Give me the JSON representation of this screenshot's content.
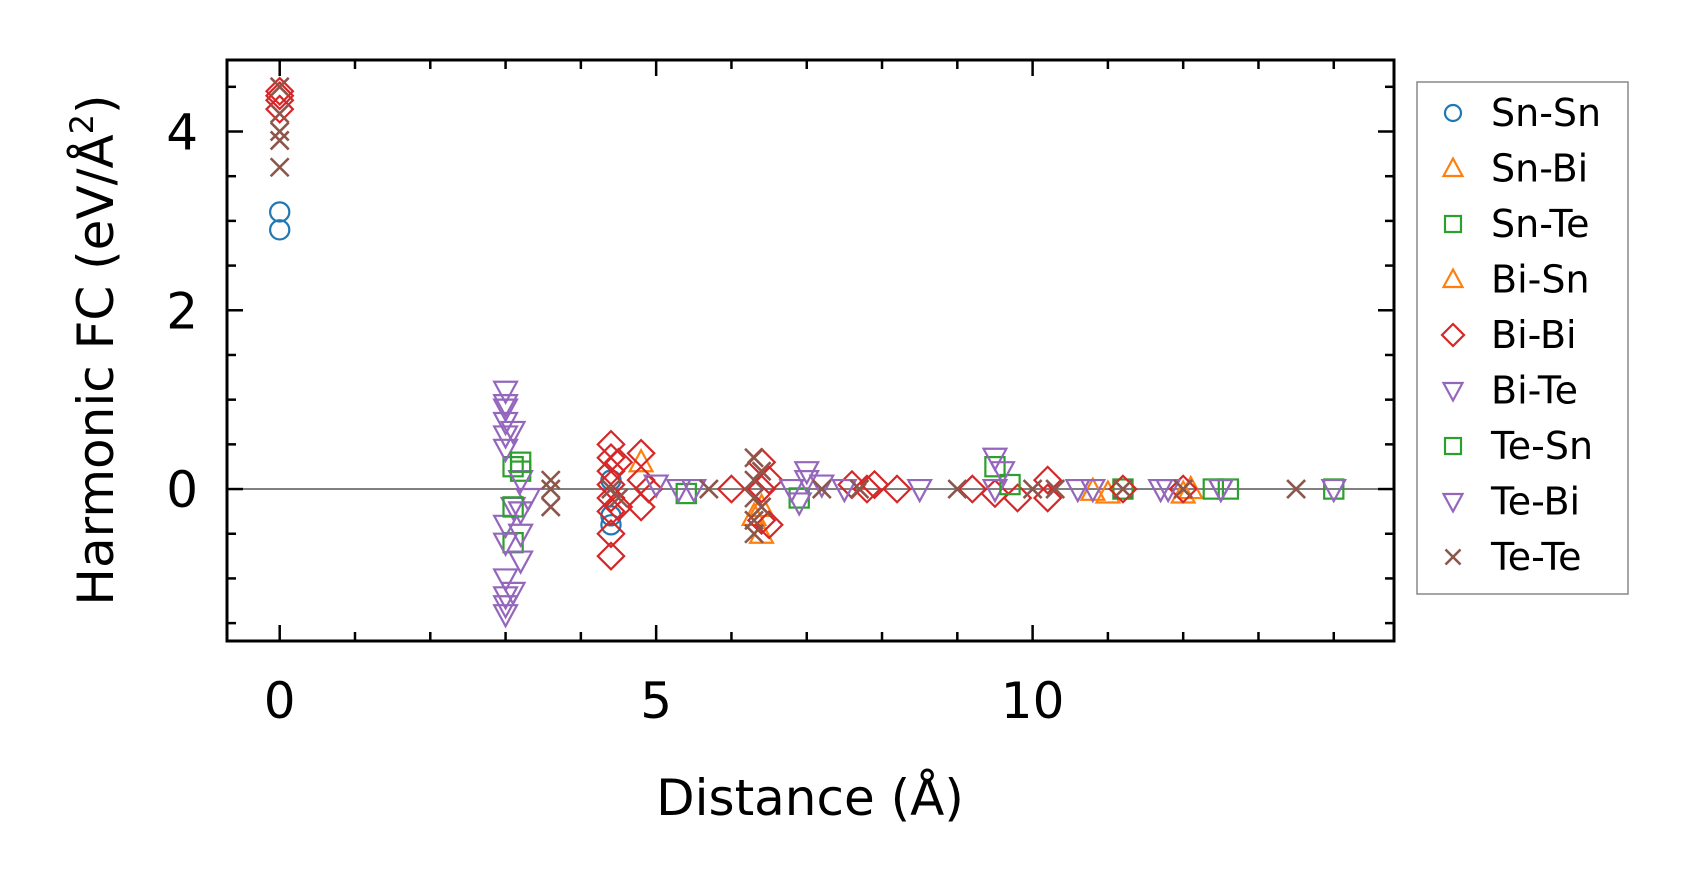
{
  "chart_data": {
    "type": "scatter",
    "title": "",
    "xlabel": "Distance (Å)",
    "ylabel_main": "Harmonic FC (eV/Å",
    "ylabel_sup": "2",
    "ylabel_tail": ")",
    "xlim": [
      -0.7,
      14.8
    ],
    "ylim": [
      -1.7,
      4.8
    ],
    "xticks": [
      0,
      5,
      10
    ],
    "xtick_labels": [
      "0",
      "5",
      "10"
    ],
    "yticks": [
      0,
      2,
      4
    ],
    "ytick_labels": [
      "0",
      "2",
      "4"
    ],
    "minor_step_x": 1,
    "minor_step_y": 0.5,
    "zero_line": true,
    "legend_position": "right",
    "series": [
      {
        "name": "Sn-Sn",
        "marker": "circle",
        "color": "#1f77b4",
        "points": [
          [
            0,
            3.1
          ],
          [
            0,
            2.9
          ],
          [
            4.4,
            -0.3
          ],
          [
            4.4,
            -0.4
          ],
          [
            4.4,
            0.1
          ]
        ]
      },
      {
        "name": "Sn-Bi",
        "marker": "triangle-up",
        "color": "#ff7f0e",
        "points": [
          [
            6.4,
            -0.5
          ],
          [
            6.4,
            -0.2
          ],
          [
            11.0,
            -0.05
          ],
          [
            12.0,
            -0.05
          ],
          [
            4.8,
            0.3
          ]
        ]
      },
      {
        "name": "Sn-Te",
        "marker": "square",
        "color": "#2ca02c",
        "points": [
          [
            3.1,
            0.25
          ],
          [
            3.1,
            -0.6
          ],
          [
            3.2,
            0.2
          ],
          [
            5.4,
            -0.05
          ],
          [
            6.9,
            -0.1
          ],
          [
            9.5,
            0.25
          ],
          [
            12.6,
            0.0
          ],
          [
            14.0,
            0.0
          ],
          [
            11.2,
            0.0
          ]
        ]
      },
      {
        "name": "Bi-Sn",
        "marker": "triangle-up",
        "color": "#ff7f0e",
        "points": [
          [
            6.3,
            -0.3
          ],
          [
            10.8,
            -0.02
          ],
          [
            12.1,
            0.0
          ]
        ]
      },
      {
        "name": "Bi-Bi",
        "marker": "diamond",
        "color": "#d62728",
        "points": [
          [
            0,
            4.45
          ],
          [
            0,
            4.35
          ],
          [
            0,
            4.25
          ],
          [
            0,
            4.4
          ],
          [
            4.4,
            0.5
          ],
          [
            4.4,
            0.35
          ],
          [
            4.4,
            0.2
          ],
          [
            4.4,
            0.05
          ],
          [
            4.4,
            -0.1
          ],
          [
            4.4,
            -0.25
          ],
          [
            4.4,
            -0.5
          ],
          [
            4.4,
            -0.75
          ],
          [
            4.5,
            0.3
          ],
          [
            4.5,
            -0.2
          ],
          [
            4.8,
            0.4
          ],
          [
            4.8,
            0.1
          ],
          [
            4.8,
            -0.2
          ],
          [
            4.9,
            0.0
          ],
          [
            6.4,
            0.3
          ],
          [
            6.4,
            0.0
          ],
          [
            6.4,
            -0.35
          ],
          [
            6.5,
            0.1
          ],
          [
            6.5,
            -0.4
          ],
          [
            6.0,
            0.0
          ],
          [
            7.6,
            0.05
          ],
          [
            7.8,
            0.0
          ],
          [
            7.9,
            0.05
          ],
          [
            8.2,
            0.0
          ],
          [
            9.2,
            0.0
          ],
          [
            9.5,
            -0.05
          ],
          [
            9.8,
            -0.1
          ],
          [
            10.2,
            0.1
          ],
          [
            10.2,
            -0.1
          ],
          [
            11.2,
            0.0
          ],
          [
            12.0,
            0.0
          ]
        ]
      },
      {
        "name": "Bi-Te",
        "marker": "triangle-down",
        "color": "#9467bd",
        "points": [
          [
            3.0,
            1.1
          ],
          [
            3.0,
            0.9
          ],
          [
            3.0,
            0.75
          ],
          [
            3.0,
            0.6
          ],
          [
            3.0,
            0.45
          ],
          [
            3.0,
            -0.4
          ],
          [
            3.0,
            -0.6
          ],
          [
            3.0,
            -1.0
          ],
          [
            3.0,
            -1.2
          ],
          [
            3.0,
            -1.4
          ],
          [
            3.1,
            -0.2
          ],
          [
            3.2,
            0.1
          ],
          [
            3.3,
            -0.1
          ],
          [
            5.0,
            0.05
          ],
          [
            5.5,
            0.0
          ],
          [
            6.8,
            0.0
          ],
          [
            7.0,
            0.1
          ],
          [
            7.2,
            0.05
          ],
          [
            8.5,
            0.0
          ],
          [
            9.5,
            0.0
          ],
          [
            10.8,
            0.0
          ],
          [
            11.8,
            0.0
          ],
          [
            12.5,
            0.0
          ],
          [
            14.0,
            0.0
          ]
        ]
      },
      {
        "name": "Te-Sn",
        "marker": "square",
        "color": "#2ca02c",
        "points": [
          [
            3.2,
            0.3
          ],
          [
            3.1,
            -0.2
          ],
          [
            9.7,
            0.05
          ],
          [
            12.4,
            0.0
          ]
        ]
      },
      {
        "name": "Te-Bi",
        "marker": "triangle-down",
        "color": "#9467bd",
        "points": [
          [
            3.2,
            -0.25
          ],
          [
            3.2,
            -0.5
          ],
          [
            3.2,
            -0.8
          ],
          [
            3.0,
            -1.3
          ],
          [
            3.1,
            -1.15
          ],
          [
            3.0,
            0.95
          ],
          [
            3.1,
            0.65
          ],
          [
            5.3,
            0.0
          ],
          [
            6.9,
            -0.15
          ],
          [
            7.0,
            0.2
          ],
          [
            7.5,
            0.0
          ],
          [
            9.5,
            0.35
          ],
          [
            9.6,
            0.2
          ],
          [
            10.6,
            0.0
          ],
          [
            11.7,
            0.0
          ],
          [
            12.5,
            0.0
          ]
        ]
      },
      {
        "name": "Te-Te",
        "marker": "x",
        "color": "#8c564b",
        "points": [
          [
            0,
            4.5
          ],
          [
            0,
            4.2
          ],
          [
            0,
            4.0
          ],
          [
            0,
            3.9
          ],
          [
            0,
            3.6
          ],
          [
            3.6,
            0.1
          ],
          [
            3.6,
            0.0
          ],
          [
            3.6,
            -0.2
          ],
          [
            4.4,
            0.0
          ],
          [
            4.5,
            -0.1
          ],
          [
            5.7,
            0.0
          ],
          [
            6.3,
            0.35
          ],
          [
            6.3,
            0.1
          ],
          [
            6.3,
            -0.1
          ],
          [
            6.3,
            -0.35
          ],
          [
            6.3,
            -0.5
          ],
          [
            6.4,
            0.2
          ],
          [
            6.4,
            -0.2
          ],
          [
            7.2,
            0.0
          ],
          [
            7.7,
            0.0
          ],
          [
            9.0,
            0.0
          ],
          [
            10.0,
            0.0
          ],
          [
            10.3,
            0.0
          ],
          [
            11.2,
            0.0
          ],
          [
            12.0,
            0.0
          ],
          [
            13.5,
            0.0
          ]
        ]
      }
    ]
  }
}
